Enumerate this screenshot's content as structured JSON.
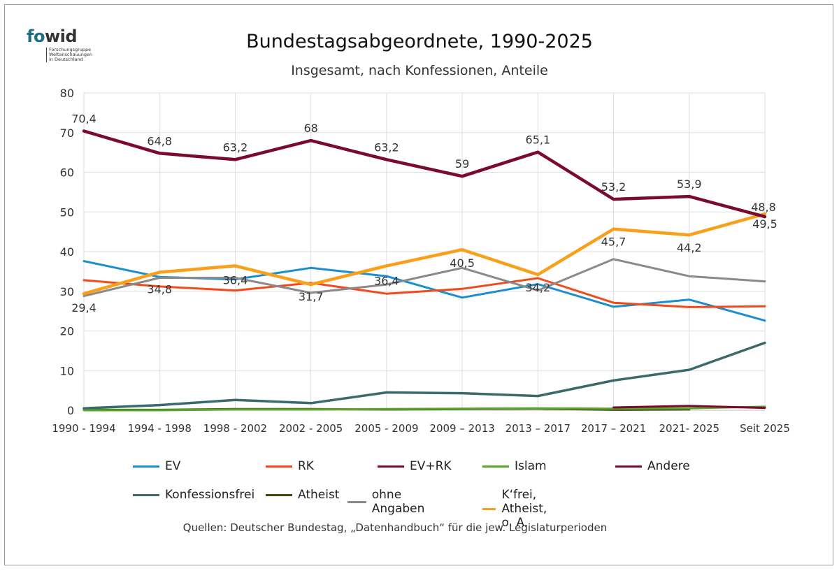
{
  "logo": {
    "part1": "fo",
    "part2": "wid",
    "lines": [
      "Forschungsgruppe",
      "Weltanschauungen",
      "in Deutschland"
    ]
  },
  "chart_data": {
    "type": "line",
    "title": "Bundestagsabgeordnete, 1990-2025",
    "subtitle": "Insgesamt, nach Konfessionen, Anteile",
    "source": "Quellen: Deutscher Bundestag, „Datenhandbuch“ für die jew. Legislaturperioden",
    "categories": [
      "1990 - 1994",
      "1994 - 1998",
      "1998 - 2002",
      "2002 - 2005",
      "2005 - 2009",
      "2009 – 2013",
      "2013 – 2017",
      "2017 – 2021",
      "2021- 2025",
      "Seit 2025"
    ],
    "ylim": [
      0,
      80
    ],
    "yticks": [
      0,
      10,
      20,
      30,
      40,
      50,
      60,
      70,
      80
    ],
    "grid": true,
    "legend_position": "bottom",
    "series": [
      {
        "name": "EV",
        "color": "#1a8fd0",
        "values": [
          37.6,
          33.6,
          33.0,
          35.9,
          33.8,
          28.4,
          31.8,
          26.1,
          27.9,
          22.6
        ]
      },
      {
        "name": "RK",
        "color": "#f14a1c",
        "values": [
          32.8,
          31.2,
          30.2,
          32.1,
          29.4,
          30.6,
          33.3,
          27.1,
          26.0,
          26.2
        ]
      },
      {
        "name": "EV+RK",
        "color": "#7a0a2e",
        "values": [
          70.4,
          64.8,
          63.2,
          68.0,
          63.2,
          59.0,
          65.1,
          53.2,
          53.9,
          48.8
        ],
        "labels": [
          "70,4",
          "64,8",
          "63,2",
          "68",
          "63,2",
          "59",
          "65,1",
          "53,2",
          "53,9",
          "48,8"
        ]
      },
      {
        "name": "Islam",
        "color": "#5aa62a",
        "values": [
          0,
          0,
          0.2,
          0.2,
          0.3,
          0.4,
          0.5,
          0.4,
          0.5,
          0.9
        ]
      },
      {
        "name": "Andere",
        "color": "#7a0a2e",
        "values": [
          null,
          null,
          null,
          null,
          null,
          null,
          null,
          0.7,
          1.1,
          0.6
        ]
      },
      {
        "name": "Konfessionsfrei",
        "color": "#3b6a6b",
        "values": [
          0.5,
          1.3,
          2.6,
          1.8,
          4.5,
          4.3,
          3.6,
          7.5,
          10.2,
          17.0
        ]
      },
      {
        "name": "Atheist",
        "color": "#3a4a0c",
        "values": [
          0.1,
          0.1,
          0.3,
          0.3,
          0.2,
          0.3,
          0.4,
          0.1,
          0.2,
          null
        ]
      },
      {
        "name": "ohne Angaben",
        "color": "#8a8a8a",
        "values": [
          28.8,
          33.4,
          33.4,
          29.6,
          31.7,
          35.9,
          30.2,
          38.1,
          33.8,
          32.5
        ]
      },
      {
        "name": "K‘frei, Atheist, o. A.",
        "color": "#f9a01b",
        "values": [
          29.4,
          34.8,
          36.4,
          31.7,
          36.4,
          40.5,
          34.2,
          45.7,
          44.2,
          49.5
        ],
        "labels": [
          "29,4",
          "34,8",
          "36,4",
          "31,7",
          "36,4",
          "40,5",
          "34,2",
          "45,7",
          "44,2",
          "49,5"
        ]
      }
    ]
  }
}
